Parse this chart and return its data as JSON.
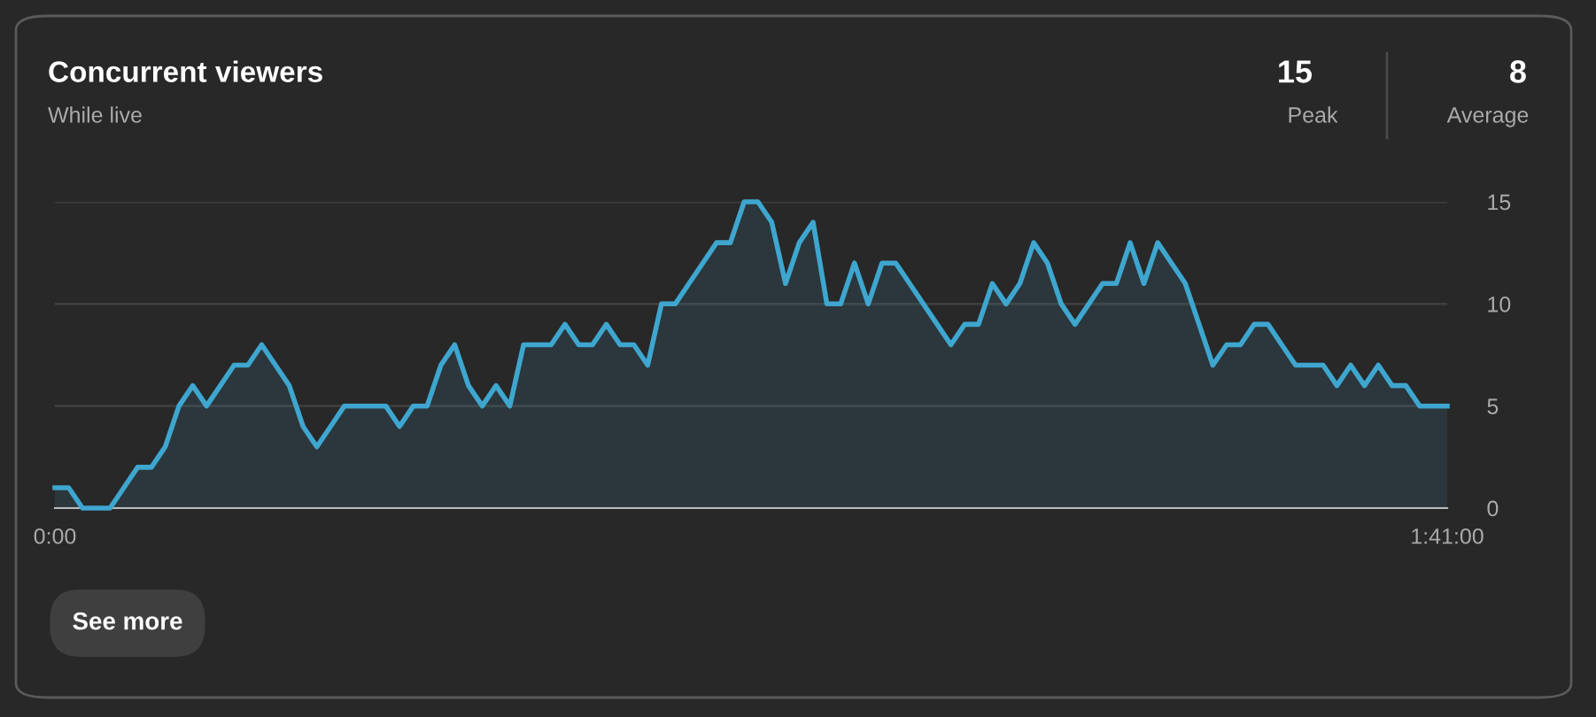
{
  "chart_data": {
    "type": "area",
    "title": "Concurrent viewers",
    "subtitle": "While live",
    "annotations": [
      "15",
      "Peak",
      "8",
      "Average",
      "See more"
    ],
    "x": [
      0,
      1,
      2,
      3,
      4,
      5,
      6,
      7,
      8,
      9,
      10,
      11,
      12,
      13,
      14,
      15,
      16,
      17,
      18,
      19,
      20,
      21,
      22,
      23,
      24,
      25,
      26,
      27,
      28,
      29,
      30,
      31,
      32,
      33,
      34,
      35,
      36,
      37,
      38,
      39,
      40,
      41,
      42,
      43,
      44,
      45,
      46,
      47,
      48,
      49,
      50,
      51,
      52,
      53,
      54,
      55,
      56,
      57,
      58,
      59,
      60,
      61,
      62,
      63,
      64,
      65,
      66,
      67,
      68,
      69,
      70,
      71,
      72,
      73,
      74,
      75,
      76,
      77,
      78,
      79,
      80,
      81,
      82,
      83,
      84,
      85,
      86,
      87,
      88,
      89,
      90,
      91,
      92,
      93,
      94,
      95,
      96,
      97,
      98,
      99,
      100,
      101
    ],
    "series": [
      {
        "color": "#3ea6cf",
        "values": [
          1,
          1,
          0,
          0,
          0,
          1,
          2,
          2,
          3,
          5,
          6,
          5,
          6,
          7,
          7,
          8,
          7,
          6,
          4,
          3,
          4,
          5,
          5,
          5,
          5,
          4,
          5,
          5,
          7,
          8,
          6,
          5,
          6,
          5,
          8,
          8,
          8,
          9,
          8,
          8,
          9,
          8,
          8,
          7,
          10,
          10,
          11,
          12,
          13,
          13,
          15,
          15,
          14,
          11,
          13,
          14,
          10,
          10,
          12,
          10,
          12,
          12,
          11,
          10,
          9,
          8,
          9,
          9,
          11,
          10,
          11,
          13,
          12,
          10,
          9,
          10,
          11,
          11,
          13,
          11,
          13,
          12,
          11,
          9,
          7,
          8,
          8,
          9,
          9,
          8,
          7,
          7,
          7,
          6,
          7,
          6,
          7,
          6,
          6,
          5,
          5,
          5
        ]
      }
    ],
    "xlim": [
      0,
      101
    ],
    "xticks": [
      {
        "value": 0,
        "label": "0:00"
      },
      {
        "value": 101,
        "label": "1:41:00"
      }
    ],
    "ylim": [
      0,
      15
    ],
    "yticks": [
      0,
      5,
      10,
      15
    ],
    "grid": "y",
    "legend": false,
    "marker": "none",
    "line_style": "solid"
  }
}
